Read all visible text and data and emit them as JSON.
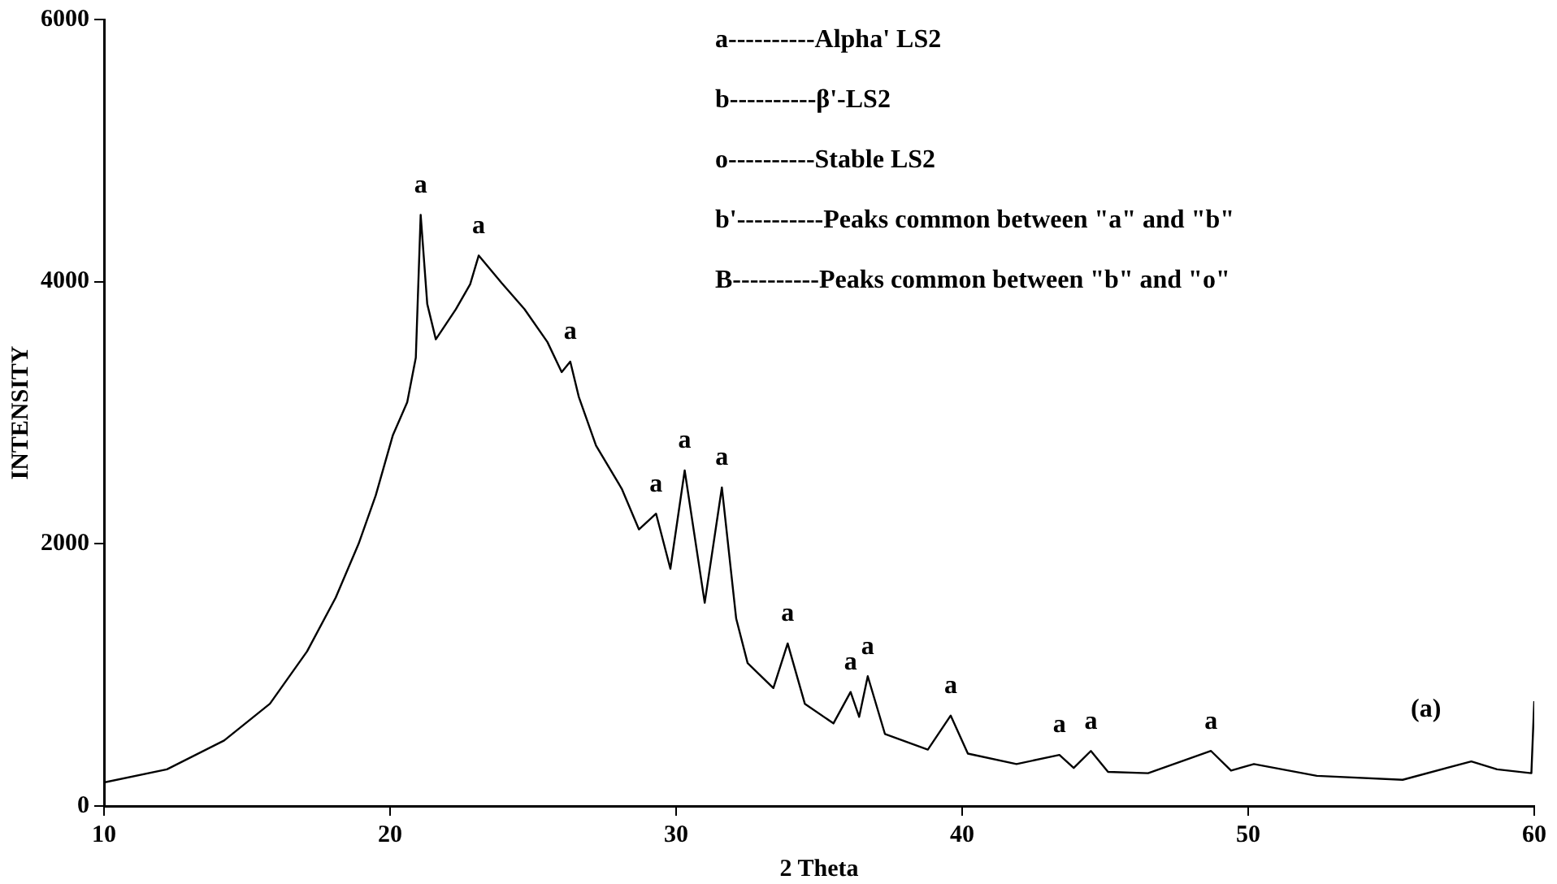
{
  "chart_data": {
    "type": "line",
    "xlabel": "2 Theta",
    "ylabel": "INTENSITY",
    "xlim": [
      10,
      60
    ],
    "xticks": [
      10,
      20,
      30,
      40,
      50,
      60
    ],
    "ylim": [
      0,
      6000
    ],
    "yticks": [
      0,
      2000,
      4000,
      6000
    ],
    "grid": false,
    "legend": false,
    "marker": "none",
    "line_style": "solid",
    "series": [
      {
        "color": "#000000",
        "x": [
          10.0,
          12.2,
          14.2,
          15.8,
          17.1,
          18.1,
          18.9,
          19.5,
          20.1,
          20.6,
          20.9,
          21.07,
          21.3,
          21.6,
          22.3,
          22.8,
          23.1,
          23.9,
          24.7,
          25.5,
          26.0,
          26.3,
          26.6,
          27.2,
          28.1,
          28.7,
          29.3,
          29.8,
          30.3,
          31.0,
          31.6,
          32.1,
          32.5,
          33.4,
          33.9,
          34.5,
          35.5,
          36.1,
          36.4,
          36.7,
          37.3,
          38.8,
          39.6,
          40.2,
          41.9,
          43.4,
          43.9,
          44.5,
          45.1,
          46.5,
          48.7,
          49.4,
          50.2,
          52.4,
          55.4,
          57.8,
          58.7,
          59.9,
          60.0
        ],
        "values": [
          180,
          280,
          500,
          780,
          1180,
          1590,
          2000,
          2370,
          2830,
          3080,
          3420,
          4510,
          3830,
          3560,
          3790,
          3980,
          4200,
          3990,
          3790,
          3540,
          3310,
          3390,
          3120,
          2750,
          2420,
          2110,
          2230,
          1810,
          2560,
          1550,
          2430,
          1430,
          1090,
          900,
          1240,
          780,
          630,
          870,
          680,
          990,
          550,
          430,
          690,
          400,
          320,
          390,
          290,
          420,
          260,
          250,
          420,
          270,
          320,
          230,
          200,
          340,
          280,
          250,
          800
        ]
      }
    ],
    "annotations": [
      "a----------Alpha' LS2",
      "b----------β'-LS2",
      "o----------Stable LS2",
      "b'----------Peaks common between \"a\" and \"b\"",
      "B----------Peaks common between \"b\" and \"o\"",
      {
        "text": "a",
        "x": 21.07,
        "y": 4510
      },
      {
        "text": "a",
        "x": 23.1,
        "y": 4200
      },
      {
        "text": "a",
        "x": 26.3,
        "y": 3390
      },
      {
        "text": "a",
        "x": 29.3,
        "y": 2230
      },
      {
        "text": "a",
        "x": 30.3,
        "y": 2560
      },
      {
        "text": "a",
        "x": 31.6,
        "y": 2430
      },
      {
        "text": "a",
        "x": 33.9,
        "y": 1240
      },
      {
        "text": "a",
        "x": 36.1,
        "y": 870
      },
      {
        "text": "a",
        "x": 36.7,
        "y": 990
      },
      {
        "text": "a",
        "x": 39.6,
        "y": 690
      },
      {
        "text": "a",
        "x": 43.4,
        "y": 390
      },
      {
        "text": "a",
        "x": 44.5,
        "y": 420
      },
      {
        "text": "a",
        "x": 48.7,
        "y": 420
      },
      "(a)"
    ]
  }
}
